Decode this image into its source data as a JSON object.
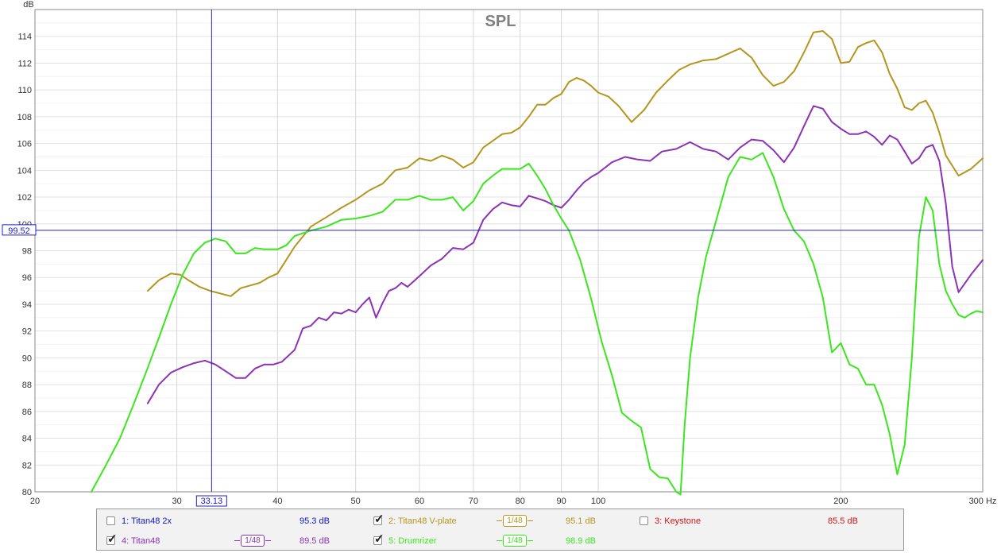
{
  "chart_data": {
    "type": "line",
    "title": "SPL",
    "ylabel": "dB",
    "xlabel": "Hz",
    "x_scale": "log",
    "xlim": [
      20,
      300
    ],
    "ylim": [
      80,
      116
    ],
    "grid": true,
    "x_ticks": [
      "20",
      "30",
      "40",
      "50",
      "60",
      "70",
      "80",
      "90",
      "100",
      "200",
      "300 Hz"
    ],
    "y_ticks": [
      "80",
      "82",
      "84",
      "86",
      "88",
      "90",
      "92",
      "94",
      "96",
      "98",
      "100",
      "102",
      "104",
      "106",
      "108",
      "110",
      "112",
      "114"
    ],
    "cursor": {
      "x_label": "33.13",
      "y_label": "99.52",
      "x": 33.13,
      "y": 99.52
    },
    "series": [
      {
        "name": "2: Titan48 V-plate",
        "color": "#b4961e",
        "x": [
          27.6,
          28.5,
          29.5,
          30.3,
          31.0,
          32.0,
          33.0,
          34.0,
          35.0,
          36.0,
          37.0,
          38.0,
          39.0,
          40.0,
          41.0,
          42.0,
          44.0,
          46.0,
          48.0,
          50.0,
          52.0,
          54.0,
          56.0,
          58.0,
          60.0,
          62.0,
          64.0,
          66.0,
          68.0,
          70.0,
          72.0,
          74.0,
          76.0,
          78.0,
          80.0,
          82.0,
          84.0,
          86.0,
          88.0,
          90.0,
          92.0,
          94.0,
          96.0,
          98.0,
          100.0,
          103.0,
          106.0,
          110.0,
          114.0,
          118.0,
          122.0,
          126.0,
          130.0,
          135.0,
          140.0,
          145.0,
          150.0,
          155.0,
          160.0,
          165.0,
          170.0,
          175.0,
          180.0,
          185.0,
          190.0,
          195.0,
          200.0,
          205.0,
          210.0,
          215.0,
          220.0,
          225.0,
          230.0,
          235.0,
          240.0,
          245.0,
          250.0,
          255.0,
          260.0,
          265.0,
          270.0,
          280.0,
          290.0,
          300.0
        ],
        "values": [
          95.0,
          95.8,
          96.3,
          96.2,
          95.8,
          95.3,
          95.0,
          94.8,
          94.6,
          95.2,
          95.4,
          95.6,
          96.0,
          96.3,
          97.3,
          98.3,
          99.8,
          100.5,
          101.2,
          101.8,
          102.5,
          103.0,
          104.0,
          104.2,
          104.9,
          104.7,
          105.1,
          104.8,
          104.2,
          104.6,
          105.7,
          106.2,
          106.7,
          106.8,
          107.2,
          108.0,
          108.9,
          108.9,
          109.4,
          109.7,
          110.6,
          110.9,
          110.7,
          110.3,
          109.8,
          109.5,
          108.8,
          107.6,
          108.5,
          109.8,
          110.7,
          111.5,
          111.9,
          112.2,
          112.3,
          112.7,
          113.1,
          112.4,
          111.1,
          110.3,
          110.6,
          111.4,
          112.8,
          114.3,
          114.4,
          113.8,
          112.0,
          112.1,
          113.2,
          113.5,
          113.7,
          112.8,
          111.2,
          110.1,
          108.7,
          108.5,
          109.0,
          109.2,
          108.3,
          106.8,
          105.1,
          103.6,
          104.1,
          104.9
        ]
      },
      {
        "name": "4: Titan48",
        "color": "#8c32b4",
        "x": [
          27.6,
          28.5,
          29.5,
          30.5,
          31.5,
          32.5,
          33.5,
          34.5,
          35.5,
          36.5,
          37.5,
          38.5,
          39.5,
          40.5,
          42.0,
          43.0,
          44.0,
          45.0,
          46.0,
          47.0,
          48.0,
          49.0,
          50.0,
          51.0,
          52.0,
          53.0,
          54.0,
          55.0,
          56.0,
          57.0,
          58.0,
          60.0,
          62.0,
          64.0,
          66.0,
          68.0,
          70.0,
          72.0,
          74.0,
          76.0,
          78.0,
          80.0,
          82.0,
          84.0,
          86.0,
          88.0,
          90.0,
          92.0,
          94.0,
          96.0,
          98.0,
          100.0,
          104.0,
          108.0,
          112.0,
          116.0,
          120.0,
          125.0,
          130.0,
          135.0,
          140.0,
          145.0,
          150.0,
          155.0,
          160.0,
          165.0,
          170.0,
          175.0,
          180.0,
          185.0,
          190.0,
          195.0,
          200.0,
          205.0,
          210.0,
          215.0,
          220.0,
          225.0,
          230.0,
          235.0,
          240.0,
          245.0,
          250.0,
          255.0,
          260.0,
          265.0,
          270.0,
          275.0,
          280.0,
          290.0,
          300.0
        ],
        "values": [
          86.6,
          88.0,
          88.9,
          89.3,
          89.6,
          89.8,
          89.5,
          89.0,
          88.5,
          88.5,
          89.2,
          89.5,
          89.5,
          89.7,
          90.6,
          92.2,
          92.4,
          93.0,
          92.8,
          93.4,
          93.3,
          93.6,
          93.4,
          94.0,
          94.5,
          93.0,
          94.1,
          95.0,
          95.2,
          95.6,
          95.3,
          96.1,
          96.9,
          97.4,
          98.2,
          98.1,
          98.6,
          100.3,
          101.1,
          101.6,
          101.4,
          101.3,
          102.1,
          101.9,
          101.7,
          101.4,
          101.2,
          101.8,
          102.5,
          103.1,
          103.5,
          103.8,
          104.6,
          105.0,
          104.8,
          104.7,
          105.4,
          105.6,
          106.1,
          105.6,
          105.4,
          104.8,
          105.7,
          106.3,
          106.2,
          105.5,
          104.6,
          105.7,
          107.3,
          108.8,
          108.6,
          107.6,
          107.1,
          106.7,
          106.7,
          106.9,
          106.5,
          105.9,
          106.6,
          106.3,
          105.4,
          104.5,
          104.9,
          105.7,
          105.9,
          104.7,
          101.5,
          96.8,
          94.9,
          96.2,
          97.3
        ]
      },
      {
        "name": "5: Drumrizer",
        "color": "#3ce61e",
        "x": [
          23.5,
          24.5,
          25.5,
          26.5,
          27.5,
          28.5,
          29.5,
          30.5,
          31.5,
          32.5,
          33.5,
          34.5,
          35.5,
          36.5,
          37.5,
          38.5,
          40.0,
          41.0,
          42.0,
          44.0,
          46.0,
          48.0,
          50.0,
          52.0,
          54.0,
          56.0,
          58.0,
          60.0,
          62.0,
          64.0,
          66.0,
          68.0,
          70.0,
          72.0,
          74.0,
          76.0,
          78.0,
          80.0,
          82.0,
          84.0,
          86.0,
          88.0,
          90.0,
          92.0,
          95.0,
          98.0,
          101.0,
          104.0,
          107.0,
          110.0,
          113.0,
          116.0,
          119.0,
          122.0,
          125.0,
          126.5,
          128.0,
          130.0,
          133.0,
          136.0,
          140.0,
          145.0,
          150.0,
          155.0,
          160.0,
          165.0,
          170.0,
          175.0,
          180.0,
          185.0,
          190.0,
          195.0,
          200.0,
          205.0,
          210.0,
          215.0,
          220.0,
          225.0,
          230.0,
          235.0,
          240.0,
          245.0,
          250.0,
          255.0,
          260.0,
          265.0,
          270.0,
          275.0,
          280.0,
          285.0,
          290.0,
          295.0,
          300.0
        ],
        "values": [
          80.0,
          82.0,
          84.0,
          86.5,
          89.0,
          91.5,
          94.0,
          96.2,
          97.8,
          98.6,
          98.9,
          98.7,
          97.8,
          97.8,
          98.2,
          98.1,
          98.1,
          98.4,
          99.1,
          99.5,
          99.8,
          100.3,
          100.4,
          100.6,
          100.9,
          101.8,
          101.8,
          102.1,
          101.8,
          101.8,
          102.0,
          101.0,
          101.7,
          103.0,
          103.6,
          104.1,
          104.1,
          104.1,
          104.5,
          103.6,
          102.6,
          101.4,
          100.4,
          99.5,
          97.3,
          94.4,
          91.2,
          88.7,
          85.9,
          85.3,
          84.8,
          81.7,
          81.1,
          81.0,
          80.0,
          79.5,
          85.0,
          90.0,
          94.5,
          97.5,
          100.2,
          103.5,
          105.0,
          104.8,
          105.3,
          103.5,
          101.1,
          99.5,
          98.7,
          97.0,
          94.5,
          90.4,
          91.1,
          89.5,
          89.2,
          88.0,
          88.0,
          86.5,
          84.3,
          81.3,
          83.5,
          90.0,
          99.0,
          102.0,
          101.0,
          97.0,
          95.0,
          94.0,
          93.2,
          93.0,
          93.3,
          93.5,
          93.4
        ]
      }
    ]
  },
  "legend": [
    {
      "label": "1: Titan48 2x",
      "value": "95.3 dB",
      "color": "#1414c8",
      "checked": false,
      "smoothing": ""
    },
    {
      "label": "2: Titan48 V-plate",
      "value": "95.1 dB",
      "color": "#b4961e",
      "checked": true,
      "smoothing": "1/48"
    },
    {
      "label": "3: Keystone",
      "value": "85.5 dB",
      "color": "#d21414",
      "checked": false,
      "smoothing": ""
    },
    {
      "label": "4: Titan48",
      "value": "89.5 dB",
      "color": "#8c32b4",
      "checked": true,
      "smoothing": "1/48"
    },
    {
      "label": "5: Drumrizer",
      "value": "98.9 dB",
      "color": "#3ce61e",
      "checked": true,
      "smoothing": "1/48"
    }
  ]
}
